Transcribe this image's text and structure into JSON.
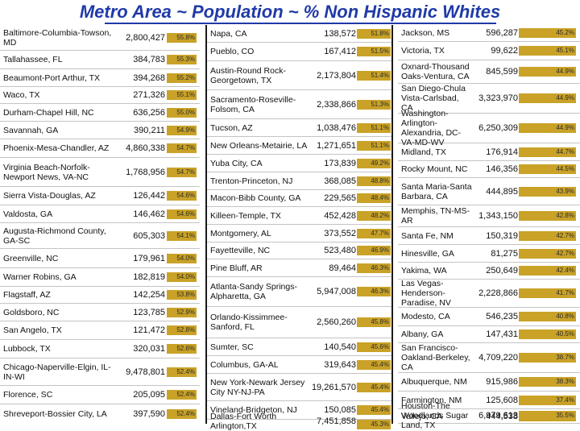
{
  "title": "Metro Area ~ Population ~ % Non Hispanic Whites",
  "colors": {
    "title": "#1f3aa8",
    "pct_box": "#c9a227"
  },
  "columns": [
    {
      "rows": [
        {
          "name": "Baltimore-Columbia-Towson, MD",
          "population": "2,800,427",
          "pct": "55.8%"
        },
        {
          "name": "Tallahassee, FL",
          "population": "384,783",
          "pct": "55.3%"
        },
        {
          "name": "Beaumont-Port Arthur, TX",
          "population": "394,268",
          "pct": "55.2%"
        },
        {
          "name": "Waco, TX",
          "population": "271,326",
          "pct": "55.1%"
        },
        {
          "name": "Durham-Chapel Hill, NC",
          "population": "636,256",
          "pct": "55.0%"
        },
        {
          "name": "Savannah, GA",
          "population": "390,211",
          "pct": "54.9%"
        },
        {
          "name": "Phoenix-Mesa-Chandler, AZ",
          "population": "4,860,338",
          "pct": "54.7%"
        },
        {
          "name": "Virginia Beach-Norfolk-Newport News, VA-NC",
          "population": "1,768,956",
          "pct": "54.7%"
        },
        {
          "name": "Sierra Vista-Douglas, AZ",
          "population": "126,442",
          "pct": "54.6%"
        },
        {
          "name": "Valdosta, GA",
          "population": "146,462",
          "pct": "54.6%"
        },
        {
          "name": "Augusta-Richmond County, GA-SC",
          "population": "605,303",
          "pct": "54.1%"
        },
        {
          "name": "Greenville, NC",
          "population": "179,961",
          "pct": "54.0%"
        },
        {
          "name": "Warner Robins, GA",
          "population": "182,819",
          "pct": "54.0%"
        },
        {
          "name": "Flagstaff, AZ",
          "population": "142,254",
          "pct": "53.8%"
        },
        {
          "name": "Goldsboro, NC",
          "population": "123,785",
          "pct": "52.9%"
        },
        {
          "name": "San Angelo, TX",
          "population": "121,472",
          "pct": "52.8%"
        },
        {
          "name": "Lubbock, TX",
          "population": "320,031",
          "pct": "52.6%"
        },
        {
          "name": "Chicago-Naperville-Elgin, IL-IN-WI",
          "population": "9,478,801",
          "pct": "52.4%"
        },
        {
          "name": "Florence, SC",
          "population": "205,095",
          "pct": "52.4%"
        },
        {
          "name": "Shreveport-Bossier City, LA",
          "population": "397,590",
          "pct": "52.4%"
        }
      ]
    },
    {
      "rows": [
        {
          "name": "Napa, CA",
          "population": "138,572",
          "pct": "51.8%"
        },
        {
          "name": "Pueblo, CO",
          "population": "167,412",
          "pct": "51.5%"
        },
        {
          "name": "Austin-Round Rock-Georgetown, TX",
          "population": "2,173,804",
          "pct": "51.4%"
        },
        {
          "name": "Sacramento-Roseville-Folsom, CA",
          "population": "2,338,866",
          "pct": "51.3%"
        },
        {
          "name": "Tucson, AZ",
          "population": "1,038,476",
          "pct": "51.1%"
        },
        {
          "name": "New Orleans-Metairie, LA",
          "population": "1,271,651",
          "pct": "51.1%"
        },
        {
          "name": "Yuba City, CA",
          "population": "173,839",
          "pct": "49.2%"
        },
        {
          "name": "Trenton-Princeton, NJ",
          "population": "368,085",
          "pct": "48.8%"
        },
        {
          "name": "Macon-Bibb County, GA",
          "population": "229,565",
          "pct": "48.4%"
        },
        {
          "name": "Killeen-Temple, TX",
          "population": "452,428",
          "pct": "48.2%"
        },
        {
          "name": "Montgomery, AL",
          "population": "373,552",
          "pct": "47.7%"
        },
        {
          "name": "Fayetteville, NC",
          "population": "523,480",
          "pct": "46.9%"
        },
        {
          "name": "Pine Bluff, AR",
          "population": "89,464",
          "pct": "46.3%"
        },
        {
          "name": "Atlanta-Sandy Springs-Alpharetta, GA",
          "population": "5,947,008",
          "pct": "46.3%"
        },
        {
          "name": "Orlando-Kissimmee-Sanford, FL",
          "population": "2,560,260",
          "pct": "45.8%"
        },
        {
          "name": "Sumter, SC",
          "population": "140,540",
          "pct": "45.6%"
        },
        {
          "name": "Columbus, GA-AL",
          "population": "319,643",
          "pct": "45.4%"
        },
        {
          "name": "New York-Newark Jersey City NY-NJ-PA",
          "population": "19,261,570",
          "pct": "45.4%"
        },
        {
          "name": "Vineland-Bridgeton, NJ",
          "population": "150,085",
          "pct": "45.4%"
        },
        {
          "name": "Dallas-Fort Worth Arlington,TX",
          "population": "7,451,858",
          "pct": "45.3%"
        }
      ]
    },
    {
      "rows": [
        {
          "name": "Jackson, MS",
          "population": "596,287",
          "pct": "45.2%"
        },
        {
          "name": "Victoria, TX",
          "population": "99,622",
          "pct": "45.1%"
        },
        {
          "name": "Oxnard-Thousand Oaks-Ventura, CA",
          "population": "845,599",
          "pct": "44.9%"
        },
        {
          "name": "San Diego-Chula Vista-Carlsbad, CA",
          "population": "3,323,970",
          "pct": "44.9%"
        },
        {
          "name": "Washington-Arlington-Alexandria, DC-VA-MD-WV",
          "population": "6,250,309",
          "pct": "44.9%"
        },
        {
          "name": "Midland, TX",
          "population": "176,914",
          "pct": "44.7%"
        },
        {
          "name": "Rocky Mount, NC",
          "population": "146,356",
          "pct": "44.5%"
        },
        {
          "name": "Santa Maria-Santa Barbara, CA",
          "population": "444,895",
          "pct": "43.9%"
        },
        {
          "name": "Memphis, TN-MS-AR",
          "population": "1,343,150",
          "pct": "42.8%"
        },
        {
          "name": "Santa Fe, NM",
          "population": "150,319",
          "pct": "42.7%"
        },
        {
          "name": "Hinesville, GA",
          "population": "81,275",
          "pct": "42.7%"
        },
        {
          "name": "Yakima, WA",
          "population": "250,649",
          "pct": "42.4%"
        },
        {
          "name": "Las Vegas-Henderson-Paradise, NV",
          "population": "2,228,866",
          "pct": "41.7%"
        },
        {
          "name": "Modesto, CA",
          "population": "546,235",
          "pct": "40.8%"
        },
        {
          "name": "Albany, GA",
          "population": "147,431",
          "pct": "40.5%"
        },
        {
          "name": "San Francisco-Oakland-Berkeley, CA",
          "population": "4,709,220",
          "pct": "38.7%"
        },
        {
          "name": "Albuquerque, NM",
          "population": "915,986",
          "pct": "38.3%"
        },
        {
          "name": "Farmington, NM",
          "population": "125,608",
          "pct": "37.4%"
        },
        {
          "name": "Vallejo, CA",
          "population": "444,538",
          "pct": "37.2%"
        },
        {
          "name": "Houston-The Woodlands Sugar Land, TX",
          "population": "6,979,613",
          "pct": "35.5%"
        }
      ]
    }
  ]
}
